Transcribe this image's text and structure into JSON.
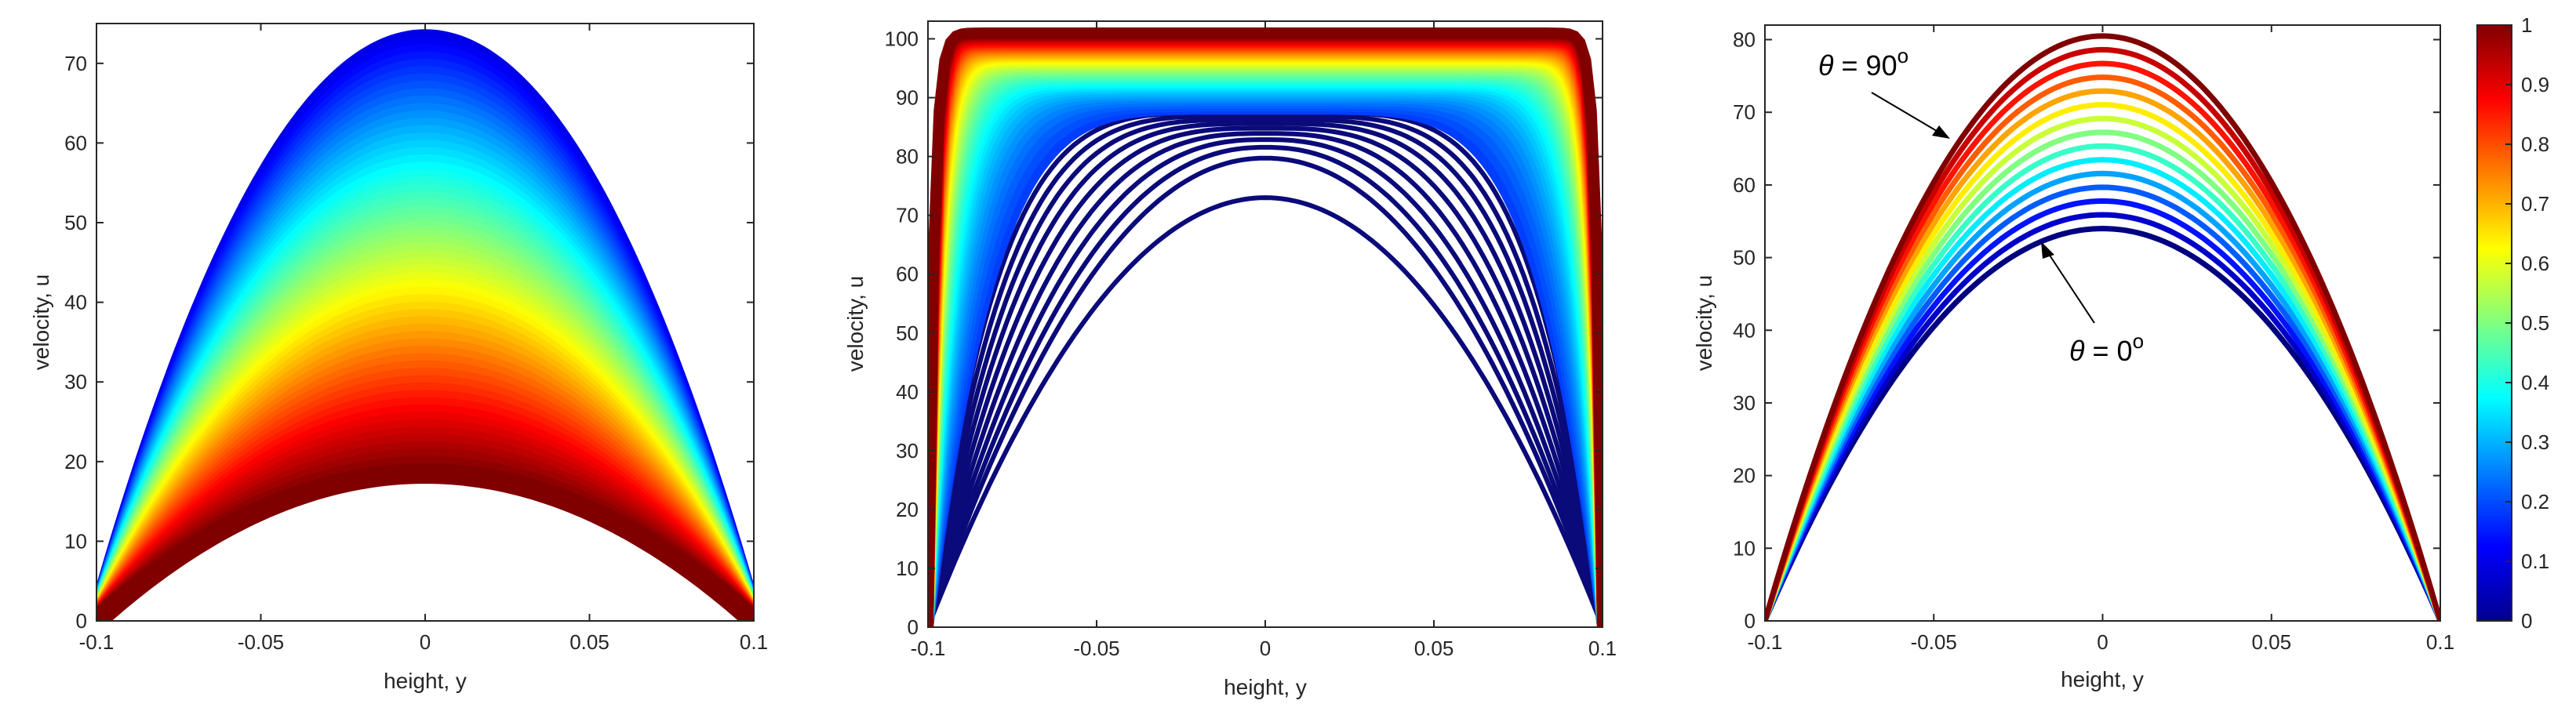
{
  "chart_data": [
    {
      "type": "line",
      "xlabel": "height, y",
      "ylabel": "velocity, u",
      "xlim": [
        -0.1,
        0.1
      ],
      "ylim": [
        0,
        75
      ],
      "xticks": [
        "-0.1",
        "-0.05",
        "0",
        "0.05",
        "0.1"
      ],
      "yticks": [
        "0",
        "10",
        "20",
        "30",
        "40",
        "50",
        "60",
        "70"
      ],
      "profile": "parabolic",
      "colormap": "jet",
      "series_count": 60,
      "centerline_velocity_range": [
        73,
        18.5
      ],
      "color_order": "blue (highest) to dark red (lowest)"
    },
    {
      "type": "line",
      "xlabel": "height, y",
      "ylabel": "velocity, u",
      "xlim": [
        -0.1,
        0.1
      ],
      "ylim": [
        0,
        103
      ],
      "xticks": [
        "-0.1",
        "-0.05",
        "0",
        "0.05",
        "0.1"
      ],
      "yticks": [
        "0",
        "10",
        "20",
        "30",
        "40",
        "50",
        "60",
        "70",
        "80",
        "90",
        "100"
      ],
      "profile": "parabolic to flat (plug)",
      "colormap": "jet",
      "series_count": 60,
      "centerline_velocity_range": [
        73,
        101
      ],
      "color_order": "dark blue (parabolic) to dark red (flat)"
    },
    {
      "type": "line",
      "xlabel": "height, y",
      "ylabel": "velocity, u",
      "xlim": [
        -0.1,
        0.1
      ],
      "ylim": [
        0,
        82
      ],
      "xticks": [
        "-0.1",
        "-0.05",
        "0",
        "0.05",
        "0.1"
      ],
      "yticks": [
        "0",
        "10",
        "20",
        "30",
        "40",
        "50",
        "60",
        "70",
        "80"
      ],
      "profile": "parabolic",
      "colormap": "jet",
      "series_count": 15,
      "centerline_velocity_range": [
        54,
        80.5
      ],
      "annotations": [
        {
          "greek": "θ",
          "text": " = 90",
          "sup": "o"
        },
        {
          "greek": "θ",
          "text": " = 0",
          "sup": "o"
        }
      ],
      "colorbar": {
        "range": [
          0,
          1
        ],
        "ticks": [
          "0",
          "0.1",
          "0.2",
          "0.3",
          "0.4",
          "0.5",
          "0.6",
          "0.7",
          "0.8",
          "0.9",
          "1"
        ]
      }
    }
  ]
}
